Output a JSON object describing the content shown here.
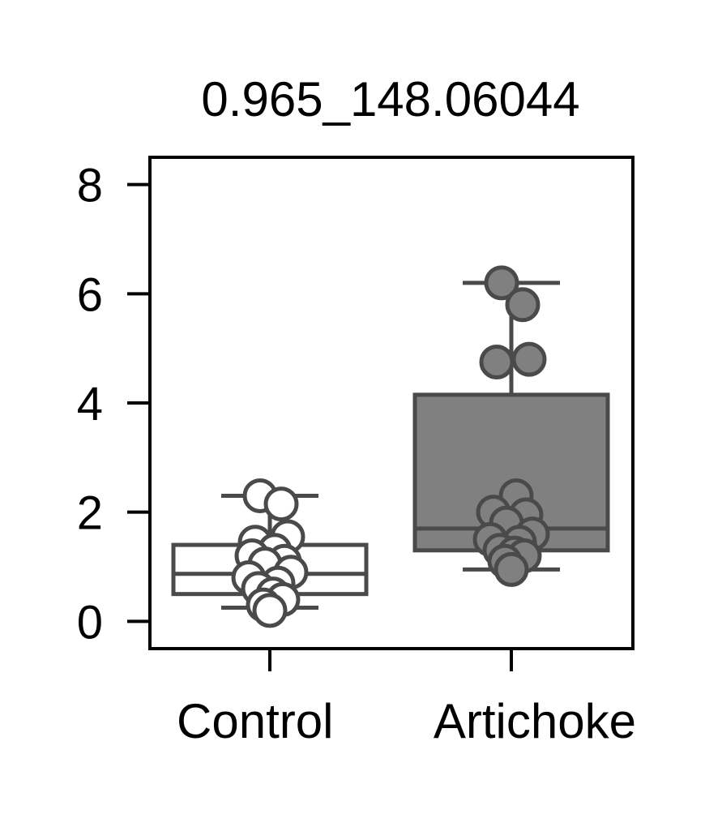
{
  "chart_data": {
    "type": "box",
    "title": "0.965_148.06044",
    "xlabel": "",
    "ylabel": "",
    "categories": [
      "Control",
      "Artichoke"
    ],
    "ylim": [
      -0.5,
      8.5
    ],
    "yticks": [
      0,
      2,
      4,
      6,
      8
    ],
    "grid": false,
    "legend": "none",
    "colors": {
      "Control": "#ffffff",
      "Artichoke": "#808080",
      "edge": "#4a4a4a",
      "axis": "#000000"
    },
    "boxes": [
      {
        "category": "Control",
        "whisker_low": 0.25,
        "q1": 0.5,
        "median": 0.87,
        "q3": 1.4,
        "whisker_high": 2.3,
        "points": [
          2.3,
          2.15,
          1.55,
          1.45,
          1.3,
          1.2,
          1.1,
          1.05,
          0.9,
          0.8,
          0.7,
          0.6,
          0.5,
          0.4,
          0.3,
          0.2
        ]
      },
      {
        "category": "Artichoke",
        "whisker_low": 0.95,
        "q1": 1.3,
        "median": 1.7,
        "q3": 4.15,
        "whisker_high": 6.2,
        "points": [
          6.2,
          5.8,
          4.8,
          4.75,
          2.3,
          2.0,
          1.95,
          1.8,
          1.6,
          1.5,
          1.45,
          1.3,
          1.25,
          1.2,
          1.1,
          0.95
        ]
      }
    ]
  }
}
